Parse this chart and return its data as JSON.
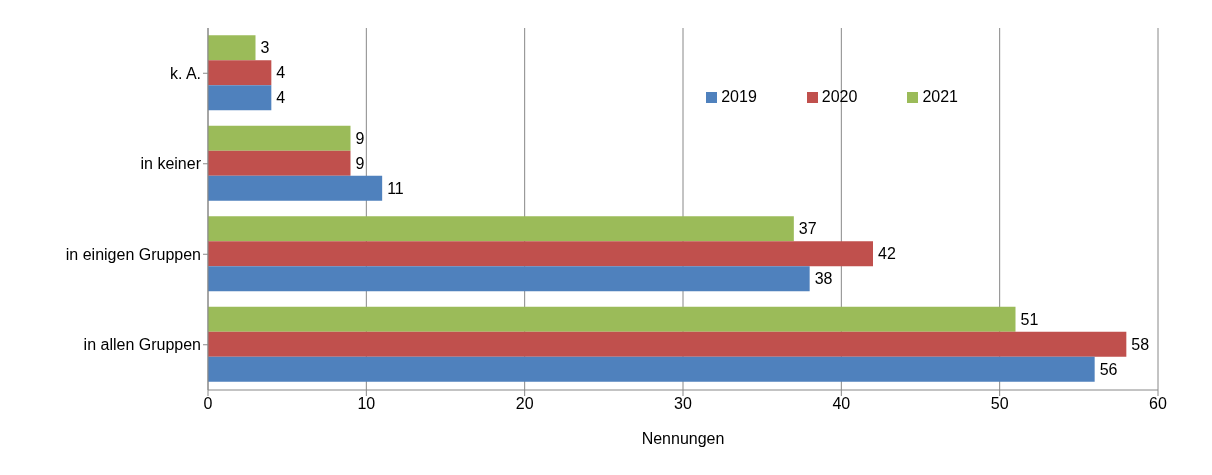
{
  "chart_data": {
    "type": "bar",
    "orientation": "horizontal",
    "categories": [
      "k. A.",
      "in keiner",
      "in einigen Gruppen",
      "in allen Gruppen"
    ],
    "series": [
      {
        "name": "2021",
        "color": "#9bbb59",
        "values": [
          3,
          9,
          37,
          51
        ]
      },
      {
        "name": "2020",
        "color": "#c0504d",
        "values": [
          4,
          9,
          42,
          58
        ]
      },
      {
        "name": "2019",
        "color": "#4f81bd",
        "values": [
          4,
          11,
          38,
          56
        ]
      }
    ],
    "xlabel": "Nennungen",
    "xlim": [
      0,
      60
    ],
    "xticks": [
      0,
      10,
      20,
      30,
      40,
      50,
      60
    ],
    "grid": "x",
    "legend": "top right",
    "data_labels": true
  }
}
